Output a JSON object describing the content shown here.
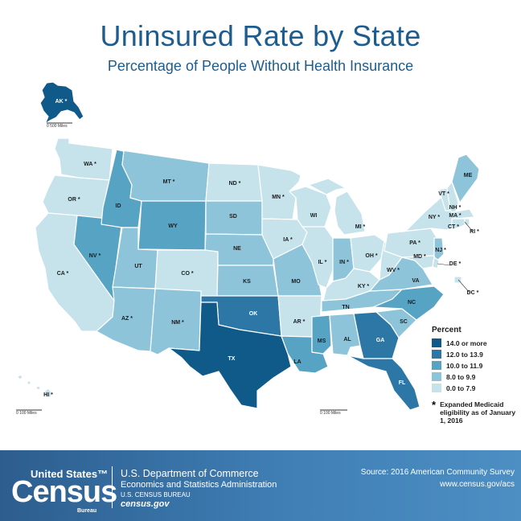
{
  "title": "Uninsured Rate by State",
  "subtitle": "Percentage of People Without Health Insurance",
  "legend": {
    "title": "Percent",
    "bins": [
      {
        "label": "14.0 or more",
        "color": "#0f5a89"
      },
      {
        "label": "12.0 to 13.9",
        "color": "#2d77a6"
      },
      {
        "label": "10.0 to 11.9",
        "color": "#57a3c4"
      },
      {
        "label": "8.0 to 9.9",
        "color": "#8ec4d9"
      },
      {
        "label": "0.0 to 7.9",
        "color": "#c6e2ea"
      }
    ],
    "note_symbol": "*",
    "note": "Expanded Medicaid eligibility as of January 1, 2016"
  },
  "scales": {
    "alaska": "0       500 Miles",
    "hawaii": "0       100 Miles",
    "mainland": "0       100 Miles"
  },
  "states": [
    {
      "id": "AK",
      "label": "AK *",
      "bin": 0
    },
    {
      "id": "HI",
      "label": "HI *",
      "bin": 4
    },
    {
      "id": "WA",
      "label": "WA *",
      "bin": 4
    },
    {
      "id": "OR",
      "label": "OR *",
      "bin": 4
    },
    {
      "id": "CA",
      "label": "CA *",
      "bin": 4
    },
    {
      "id": "NV",
      "label": "NV *",
      "bin": 2
    },
    {
      "id": "ID",
      "label": "ID",
      "bin": 2
    },
    {
      "id": "MT",
      "label": "MT *",
      "bin": 3
    },
    {
      "id": "WY",
      "label": "WY",
      "bin": 2
    },
    {
      "id": "UT",
      "label": "UT",
      "bin": 3
    },
    {
      "id": "CO",
      "label": "CO *",
      "bin": 4
    },
    {
      "id": "AZ",
      "label": "AZ *",
      "bin": 3
    },
    {
      "id": "NM",
      "label": "NM *",
      "bin": 3
    },
    {
      "id": "ND",
      "label": "ND *",
      "bin": 4
    },
    {
      "id": "SD",
      "label": "SD",
      "bin": 3
    },
    {
      "id": "NE",
      "label": "NE",
      "bin": 3
    },
    {
      "id": "KS",
      "label": "KS",
      "bin": 3
    },
    {
      "id": "OK",
      "label": "OK",
      "bin": 1
    },
    {
      "id": "TX",
      "label": "TX",
      "bin": 0
    },
    {
      "id": "MN",
      "label": "MN *",
      "bin": 4
    },
    {
      "id": "IA",
      "label": "IA *",
      "bin": 4
    },
    {
      "id": "MO",
      "label": "MO",
      "bin": 3
    },
    {
      "id": "AR",
      "label": "AR *",
      "bin": 4
    },
    {
      "id": "LA",
      "label": "LA",
      "bin": 2
    },
    {
      "id": "WI",
      "label": "WI",
      "bin": 4
    },
    {
      "id": "IL",
      "label": "IL *",
      "bin": 4
    },
    {
      "id": "MI",
      "label": "MI *",
      "bin": 4
    },
    {
      "id": "IN",
      "label": "IN *",
      "bin": 3
    },
    {
      "id": "OH",
      "label": "OH *",
      "bin": 4
    },
    {
      "id": "KY",
      "label": "KY *",
      "bin": 4
    },
    {
      "id": "TN",
      "label": "TN",
      "bin": 3
    },
    {
      "id": "MS",
      "label": "MS",
      "bin": 2
    },
    {
      "id": "AL",
      "label": "AL",
      "bin": 3
    },
    {
      "id": "GA",
      "label": "GA",
      "bin": 1
    },
    {
      "id": "FL",
      "label": "FL",
      "bin": 1
    },
    {
      "id": "SC",
      "label": "SC",
      "bin": 3
    },
    {
      "id": "NC",
      "label": "NC",
      "bin": 2
    },
    {
      "id": "VA",
      "label": "VA",
      "bin": 3
    },
    {
      "id": "WV",
      "label": "WV *",
      "bin": 4
    },
    {
      "id": "PA",
      "label": "PA *",
      "bin": 4
    },
    {
      "id": "NY",
      "label": "NY *",
      "bin": 4
    },
    {
      "id": "VT",
      "label": "VT *",
      "bin": 4
    },
    {
      "id": "NH",
      "label": "NH *",
      "bin": 4
    },
    {
      "id": "ME",
      "label": "ME",
      "bin": 3
    },
    {
      "id": "MA",
      "label": "MA *",
      "bin": 4
    },
    {
      "id": "RI",
      "label": "RI *",
      "bin": 4
    },
    {
      "id": "CT",
      "label": "CT *",
      "bin": 4
    },
    {
      "id": "NJ",
      "label": "NJ *",
      "bin": 3
    },
    {
      "id": "DE",
      "label": "DE *",
      "bin": 4
    },
    {
      "id": "MD",
      "label": "MD *",
      "bin": 4
    },
    {
      "id": "DC",
      "label": "DC *",
      "bin": 4
    }
  ],
  "footer": {
    "logo_top": "United States™",
    "logo_main": "Census",
    "logo_bureau": "Bureau",
    "dept_line1": "U.S. Department of Commerce",
    "dept_line2": "Economics and Statistics Administration",
    "dept_line3": "U.S. CENSUS BUREAU",
    "dept_line4": "census.gov",
    "source": "Source: 2016 American Community Survey",
    "url": "www.census.gov/acs"
  }
}
